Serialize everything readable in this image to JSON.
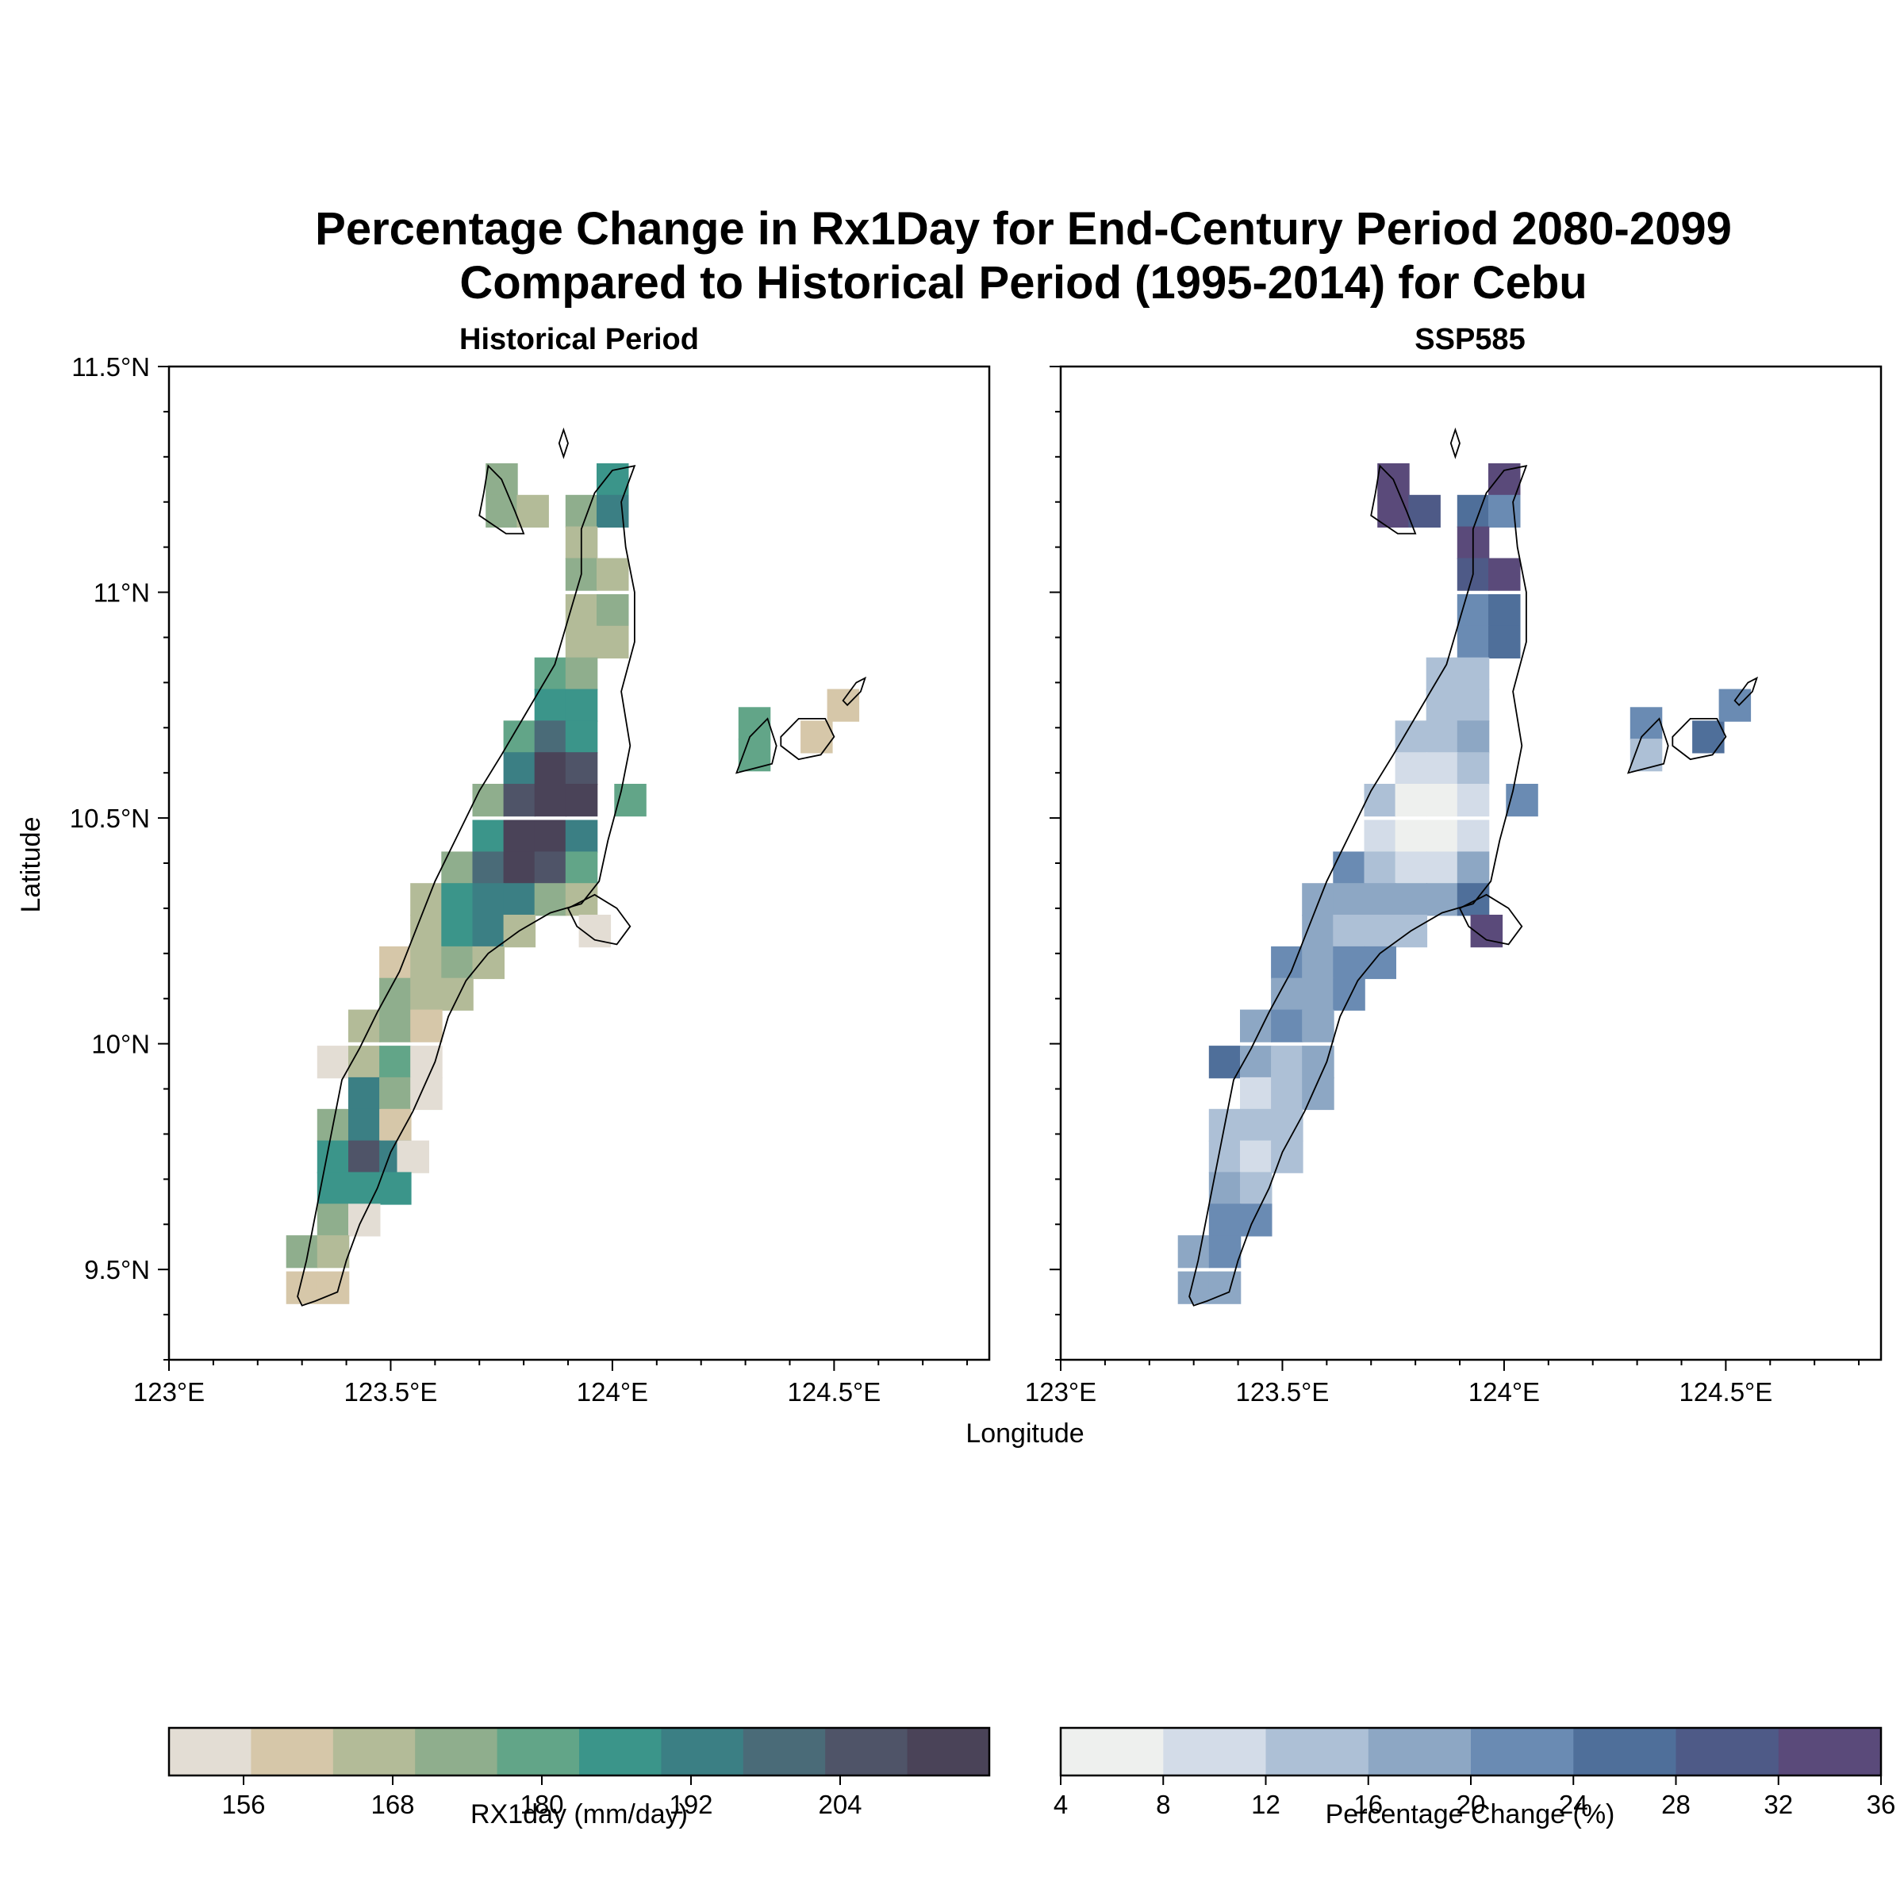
{
  "figure": {
    "title_line1": "Percentage Change in Rx1Day for End-Century Period 2080-2099",
    "title_line2": "Compared to Historical Period (1995-2014) for Cebu",
    "xlabel": "Longitude",
    "ylabel": "Latitude"
  },
  "panels": [
    {
      "id": "historical",
      "title": "Historical Period",
      "lon_ticks": [
        "123°E",
        "123.5°E",
        "124°E",
        "124.5°E"
      ],
      "lat_ticks": [
        "11.5°N",
        "11°N",
        "10.5°N",
        "10°N",
        "9.5°N"
      ],
      "colorbar": {
        "label": "RX1day (mm/day)",
        "tick_labels": [
          "156",
          "168",
          "180",
          "192",
          "204"
        ],
        "colors": [
          "#e3ddd4",
          "#d6c7a9",
          "#b3bb98",
          "#8fae8d",
          "#62a588",
          "#3b958a",
          "#3b7f84",
          "#4a6b78",
          "#4f5468",
          "#4a4358"
        ]
      }
    },
    {
      "id": "ssp585",
      "title": "SSP585",
      "lon_ticks": [
        "123°E",
        "123.5°E",
        "124°E",
        "124.5°E"
      ],
      "lat_ticks": [],
      "colorbar": {
        "label": "Percentage Change (%)",
        "tick_labels": [
          "4",
          "8",
          "12",
          "16",
          "20",
          "24",
          "28",
          "32",
          "36"
        ],
        "colors": [
          "#eef0ee",
          "#d3dce8",
          "#adc0d6",
          "#8da7c4",
          "#6a8bb3",
          "#4f6f9a",
          "#4e5a87",
          "#5a4a7a"
        ]
      }
    }
  ],
  "chart_data": [
    {
      "type": "heatmap",
      "title": "Historical Period",
      "xlabel": "Longitude",
      "ylabel": "Latitude",
      "xlim": [
        123.0,
        124.85
      ],
      "ylim": [
        9.3,
        11.5
      ],
      "cell_deg": 0.0714,
      "colorbar_label": "RX1day (mm/day)",
      "colorbar_bounds": [
        150,
        216
      ],
      "colorbar_step": 6,
      "cells": [
        [
          123.75,
          11.25,
          171
        ],
        [
          123.75,
          11.18,
          172
        ],
        [
          123.82,
          11.18,
          165
        ],
        [
          124.0,
          11.25,
          185
        ],
        [
          123.93,
          11.18,
          168
        ],
        [
          124.0,
          11.18,
          186
        ],
        [
          123.93,
          11.11,
          167
        ],
        [
          123.93,
          11.04,
          171
        ],
        [
          124.0,
          11.04,
          165
        ],
        [
          123.93,
          10.96,
          167
        ],
        [
          124.0,
          10.96,
          171
        ],
        [
          123.93,
          10.89,
          166
        ],
        [
          124.0,
          10.89,
          165
        ],
        [
          123.86,
          10.82,
          176
        ],
        [
          123.93,
          10.82,
          172
        ],
        [
          123.86,
          10.75,
          184
        ],
        [
          123.93,
          10.75,
          184
        ],
        [
          123.79,
          10.68,
          177
        ],
        [
          123.86,
          10.68,
          197
        ],
        [
          123.93,
          10.68,
          185
        ],
        [
          123.79,
          10.61,
          186
        ],
        [
          123.86,
          10.61,
          204
        ],
        [
          123.93,
          10.61,
          199
        ],
        [
          123.72,
          10.54,
          171
        ],
        [
          123.79,
          10.54,
          203
        ],
        [
          123.86,
          10.54,
          211
        ],
        [
          123.93,
          10.54,
          205
        ],
        [
          124.04,
          10.54,
          178
        ],
        [
          123.72,
          10.46,
          185
        ],
        [
          123.79,
          10.46,
          207
        ],
        [
          123.86,
          10.46,
          210
        ],
        [
          123.93,
          10.46,
          189
        ],
        [
          123.65,
          10.39,
          168
        ],
        [
          123.72,
          10.39,
          197
        ],
        [
          123.79,
          10.39,
          210
        ],
        [
          123.86,
          10.39,
          200
        ],
        [
          123.93,
          10.39,
          178
        ],
        [
          123.58,
          10.32,
          166
        ],
        [
          123.65,
          10.32,
          181
        ],
        [
          123.72,
          10.32,
          191
        ],
        [
          123.79,
          10.32,
          190
        ],
        [
          123.86,
          10.32,
          168
        ],
        [
          123.93,
          10.32,
          167
        ],
        [
          123.58,
          10.25,
          164
        ],
        [
          123.65,
          10.25,
          181
        ],
        [
          123.72,
          10.25,
          189
        ],
        [
          123.79,
          10.25,
          166
        ],
        [
          123.96,
          10.25,
          153
        ],
        [
          123.51,
          10.18,
          160
        ],
        [
          123.58,
          10.18,
          166
        ],
        [
          123.65,
          10.18,
          168
        ],
        [
          123.72,
          10.18,
          163
        ],
        [
          123.51,
          10.11,
          168
        ],
        [
          123.58,
          10.11,
          165
        ],
        [
          123.65,
          10.11,
          162
        ],
        [
          123.44,
          10.04,
          166
        ],
        [
          123.51,
          10.04,
          168
        ],
        [
          123.58,
          10.04,
          160
        ],
        [
          123.37,
          9.96,
          153
        ],
        [
          123.44,
          9.96,
          167
        ],
        [
          123.51,
          9.96,
          175
        ],
        [
          123.58,
          9.96,
          155
        ],
        [
          123.44,
          9.89,
          189
        ],
        [
          123.51,
          9.89,
          172
        ],
        [
          123.58,
          9.89,
          155
        ],
        [
          123.37,
          9.82,
          170
        ],
        [
          123.44,
          9.82,
          187
        ],
        [
          123.51,
          9.82,
          160
        ],
        [
          123.37,
          9.75,
          185
        ],
        [
          123.44,
          9.75,
          198
        ],
        [
          123.51,
          9.75,
          186
        ],
        [
          123.55,
          9.75,
          154
        ],
        [
          123.37,
          9.68,
          185
        ],
        [
          123.44,
          9.68,
          185
        ],
        [
          123.51,
          9.68,
          184
        ],
        [
          123.37,
          9.61,
          171
        ],
        [
          123.44,
          9.61,
          155
        ],
        [
          123.3,
          9.54,
          172
        ],
        [
          123.37,
          9.54,
          166
        ],
        [
          123.3,
          9.46,
          161
        ],
        [
          123.37,
          9.46,
          161
        ],
        [
          124.32,
          10.71,
          174
        ],
        [
          124.32,
          10.64,
          174
        ],
        [
          124.46,
          10.68,
          160
        ],
        [
          124.52,
          10.75,
          160
        ]
      ]
    },
    {
      "type": "heatmap",
      "title": "SSP585",
      "xlabel": "Longitude",
      "xlim": [
        123.0,
        124.85
      ],
      "ylim": [
        9.3,
        11.5
      ],
      "cell_deg": 0.0714,
      "colorbar_label": "Percentage Change (%)",
      "colorbar_bounds": [
        4,
        36
      ],
      "colorbar_step": 4,
      "cells": [
        [
          123.75,
          11.25,
          33
        ],
        [
          123.75,
          11.18,
          33
        ],
        [
          123.82,
          11.18,
          29
        ],
        [
          124.0,
          11.25,
          33
        ],
        [
          123.93,
          11.18,
          26
        ],
        [
          124.0,
          11.18,
          23
        ],
        [
          123.93,
          11.11,
          33
        ],
        [
          123.93,
          11.04,
          31
        ],
        [
          124.0,
          11.04,
          34
        ],
        [
          123.93,
          10.96,
          23
        ],
        [
          124.0,
          10.96,
          27
        ],
        [
          123.93,
          10.89,
          22
        ],
        [
          124.0,
          10.89,
          25
        ],
        [
          123.86,
          10.82,
          15
        ],
        [
          123.93,
          10.82,
          14
        ],
        [
          123.86,
          10.75,
          13
        ],
        [
          123.93,
          10.75,
          15
        ],
        [
          123.79,
          10.68,
          13
        ],
        [
          123.86,
          10.68,
          13
        ],
        [
          123.93,
          10.68,
          17
        ],
        [
          123.79,
          10.61,
          11
        ],
        [
          123.86,
          10.61,
          11
        ],
        [
          123.93,
          10.61,
          13
        ],
        [
          123.72,
          10.54,
          14
        ],
        [
          123.79,
          10.54,
          7
        ],
        [
          123.86,
          10.54,
          6
        ],
        [
          123.93,
          10.54,
          11
        ],
        [
          124.04,
          10.54,
          23
        ],
        [
          123.72,
          10.46,
          11
        ],
        [
          123.79,
          10.46,
          6
        ],
        [
          123.86,
          10.46,
          7
        ],
        [
          123.93,
          10.46,
          10
        ],
        [
          123.65,
          10.39,
          22
        ],
        [
          123.72,
          10.39,
          13
        ],
        [
          123.79,
          10.39,
          11
        ],
        [
          123.86,
          10.39,
          11
        ],
        [
          123.93,
          10.39,
          17
        ],
        [
          123.58,
          10.32,
          17
        ],
        [
          123.65,
          10.32,
          17
        ],
        [
          123.72,
          10.32,
          17
        ],
        [
          123.79,
          10.32,
          16
        ],
        [
          123.86,
          10.32,
          17
        ],
        [
          123.93,
          10.32,
          26
        ],
        [
          123.58,
          10.25,
          17
        ],
        [
          123.65,
          10.25,
          13
        ],
        [
          123.72,
          10.25,
          13
        ],
        [
          123.79,
          10.25,
          15
        ],
        [
          123.96,
          10.25,
          32
        ],
        [
          123.51,
          10.18,
          23
        ],
        [
          123.58,
          10.18,
          17
        ],
        [
          123.65,
          10.18,
          23
        ],
        [
          123.72,
          10.18,
          23
        ],
        [
          123.51,
          10.11,
          18
        ],
        [
          123.58,
          10.11,
          17
        ],
        [
          123.65,
          10.11,
          22
        ],
        [
          123.44,
          10.04,
          18
        ],
        [
          123.51,
          10.04,
          22
        ],
        [
          123.58,
          10.04,
          17
        ],
        [
          123.37,
          9.96,
          26
        ],
        [
          123.44,
          9.96,
          17
        ],
        [
          123.51,
          9.96,
          15
        ],
        [
          123.58,
          9.96,
          17
        ],
        [
          123.44,
          9.89,
          10
        ],
        [
          123.51,
          9.89,
          15
        ],
        [
          123.58,
          9.89,
          17
        ],
        [
          123.37,
          9.82,
          13
        ],
        [
          123.44,
          9.82,
          14
        ],
        [
          123.51,
          9.82,
          14
        ],
        [
          123.37,
          9.75,
          14
        ],
        [
          123.44,
          9.75,
          10
        ],
        [
          123.51,
          9.75,
          14
        ],
        [
          123.37,
          9.68,
          17
        ],
        [
          123.44,
          9.68,
          14
        ],
        [
          123.37,
          9.61,
          22
        ],
        [
          123.44,
          9.61,
          22
        ],
        [
          123.3,
          9.54,
          17
        ],
        [
          123.37,
          9.54,
          22
        ],
        [
          123.3,
          9.46,
          17
        ],
        [
          123.37,
          9.46,
          17
        ],
        [
          124.32,
          10.71,
          22
        ],
        [
          124.32,
          10.64,
          15
        ],
        [
          124.46,
          10.68,
          25
        ],
        [
          124.52,
          10.75,
          23
        ]
      ]
    }
  ]
}
